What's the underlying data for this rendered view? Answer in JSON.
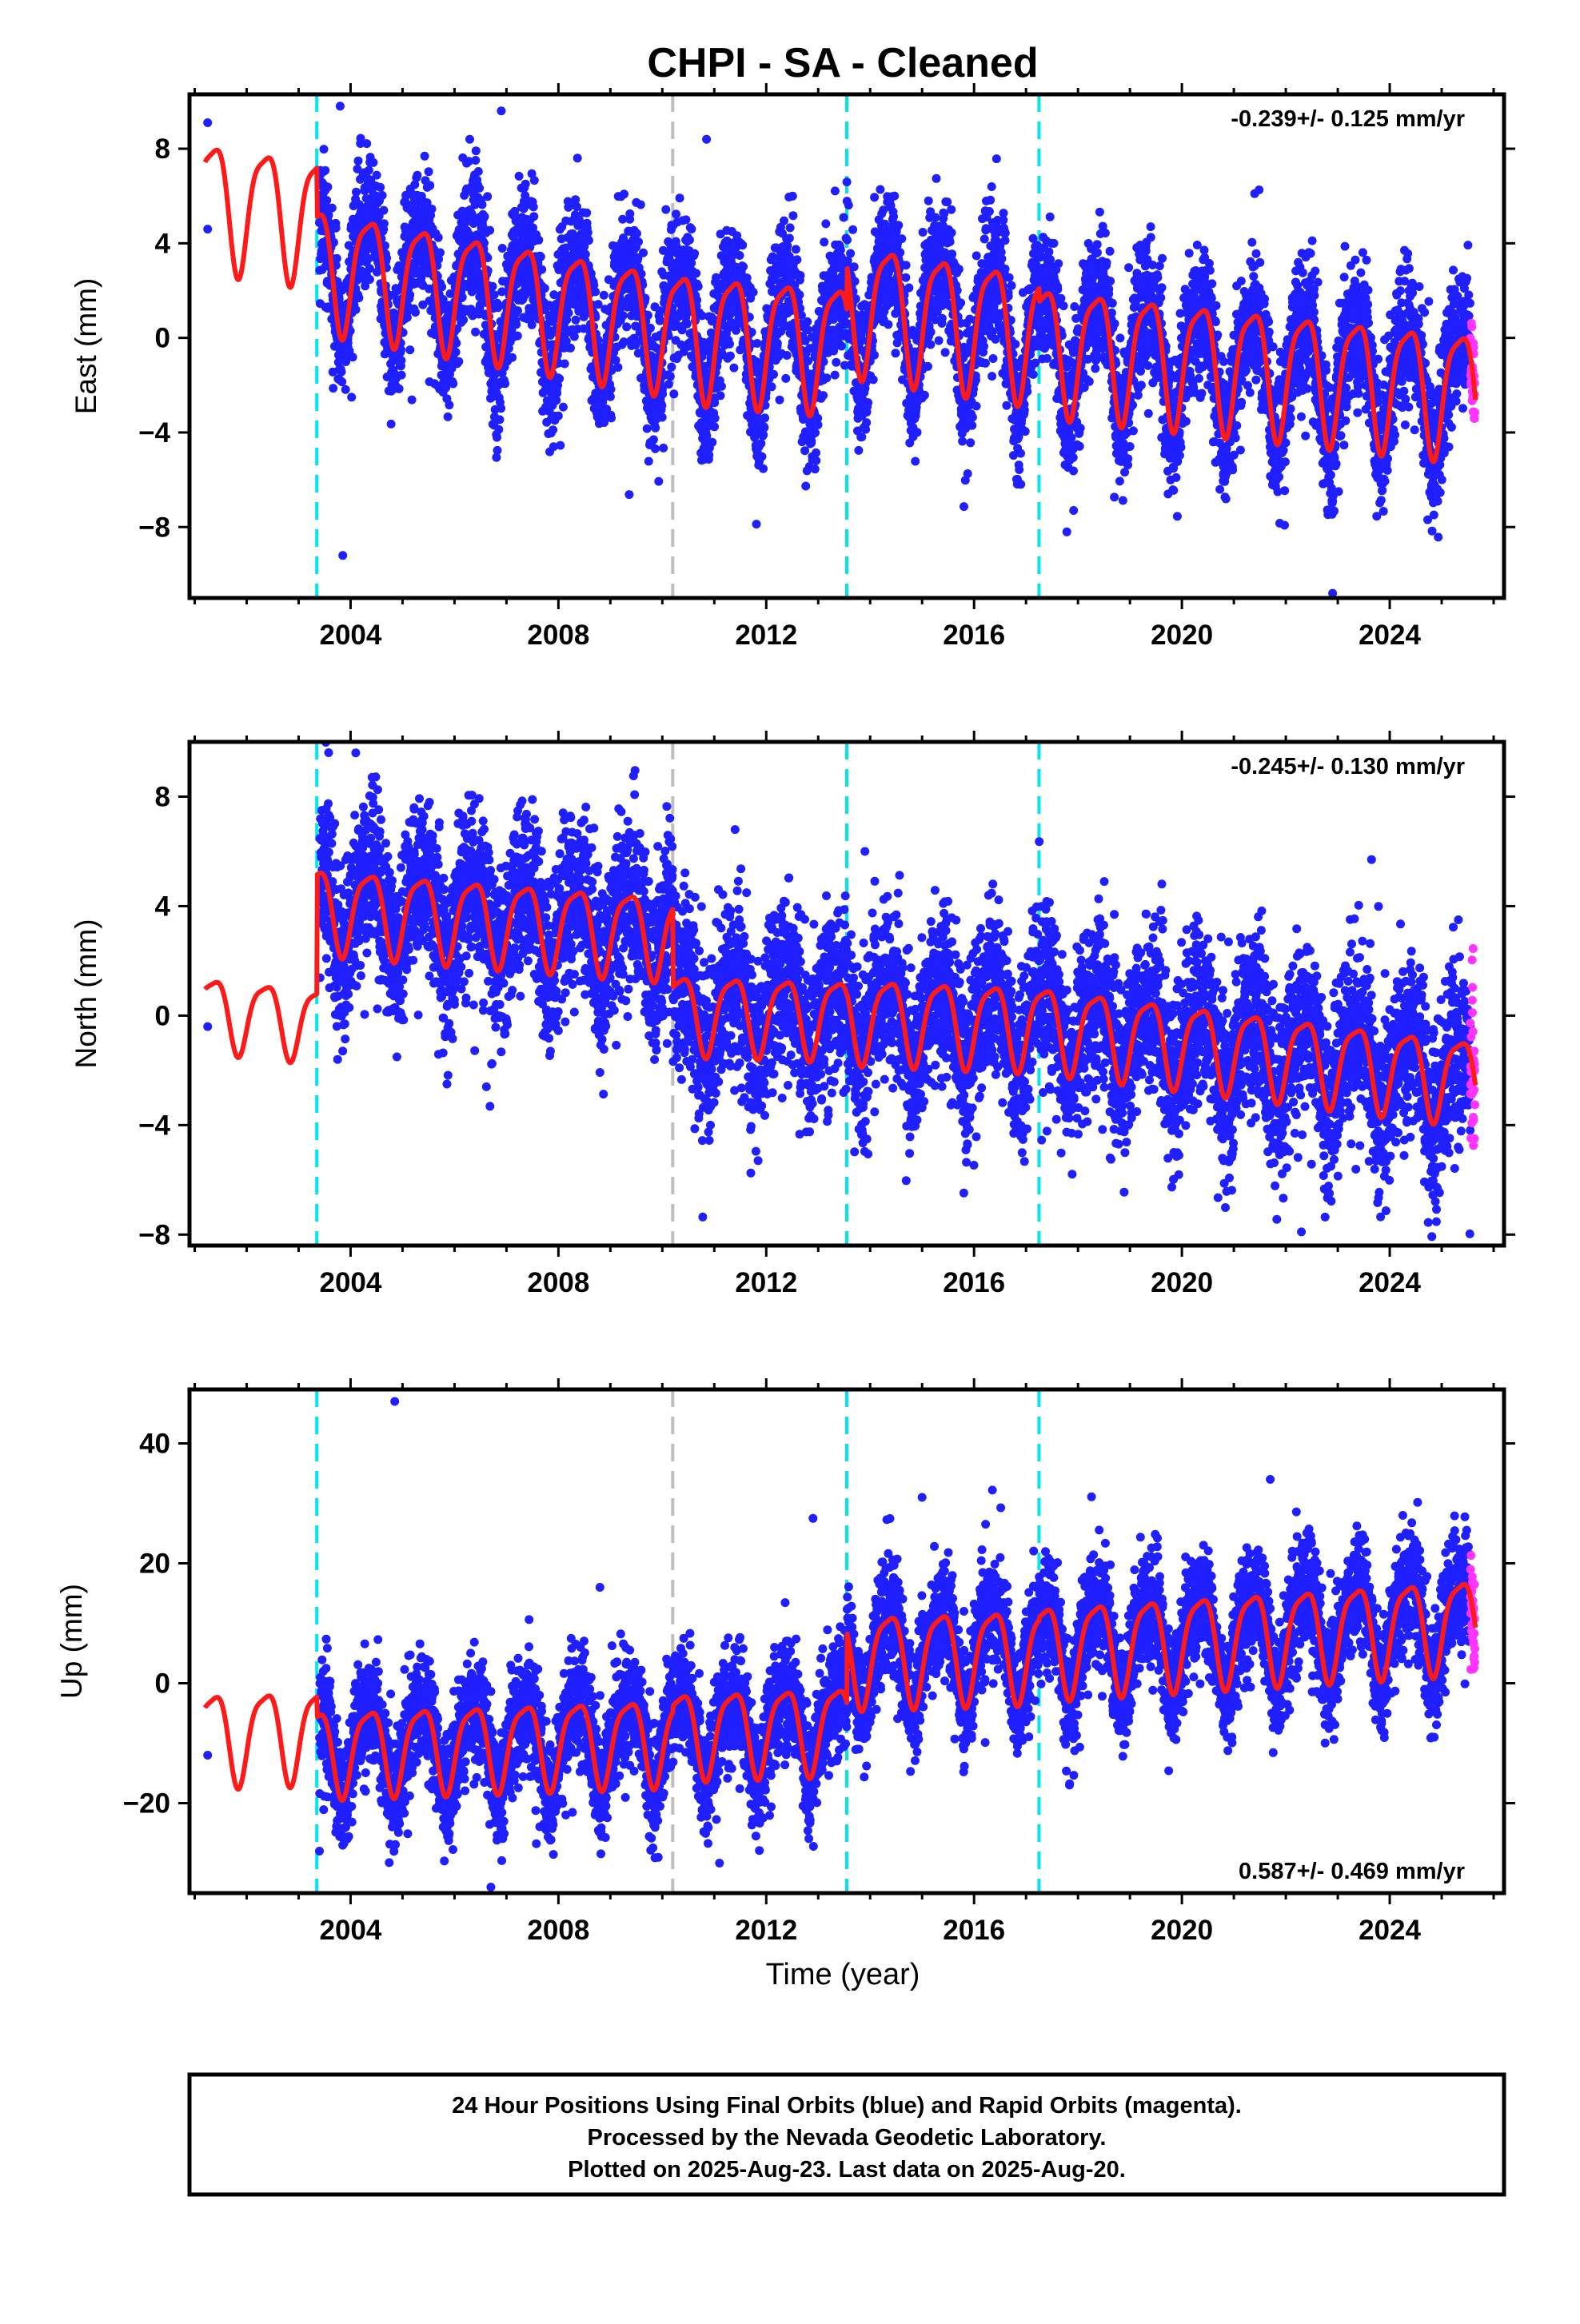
{
  "chart_data": {
    "type": "scatter",
    "title": "CHPI  - SA - Cleaned",
    "xlabel": "Time (year)",
    "xlim": [
      2000.9,
      2026.2
    ],
    "x_ticks": [
      2004,
      2008,
      2012,
      2016,
      2020,
      2024
    ],
    "x_tick_labels": [
      "2004",
      "2008",
      "2012",
      "2016",
      "2020",
      "2024"
    ],
    "colors": {
      "final_orbits": "#1f1fff",
      "rapid_orbits": "#ff33ff",
      "model": "#ff1a1a",
      "offset_equipment": "#00e5ee",
      "offset_other": "#bfbfbf",
      "frame": "#000000"
    },
    "offsets": [
      {
        "year": 2003.35,
        "kind": "equipment"
      },
      {
        "year": 2010.2,
        "kind": "other"
      },
      {
        "year": 2013.55,
        "kind": "equipment"
      },
      {
        "year": 2017.25,
        "kind": "equipment"
      }
    ],
    "panels": [
      {
        "id": "east",
        "ylabel": "East (mm)",
        "ylim": [
          -11,
          10.3
        ],
        "y_ticks": [
          -8,
          -4,
          0,
          4,
          8
        ],
        "y_tick_labels": [
          "−8",
          "−4",
          "0",
          "4",
          "8"
        ],
        "rate": "-0.239+/- 0.125 mm/yr",
        "rate_position": "top-right",
        "model": {
          "type": "piecewise-linear-plus-seasonal",
          "segments": [
            {
              "from": 2001.2,
              "to": 2003.35,
              "trend": [
                5.9,
                5.2
              ],
              "amplitude": 2.6
            },
            {
              "from": 2003.35,
              "to": 2010.2,
              "trend": [
                3.2,
                0.5
              ],
              "amplitude": 2.5
            },
            {
              "from": 2010.2,
              "to": 2013.55,
              "trend": [
                0.4,
                -0.2
              ],
              "amplitude": 2.6
            },
            {
              "from": 2013.55,
              "to": 2017.25,
              "trend": [
                1.6,
                0.3
              ],
              "amplitude": 2.7
            },
            {
              "from": 2017.25,
              "to": 2025.65,
              "trend": [
                -0.2,
                -2.2
              ],
              "amplitude": 2.6
            }
          ]
        },
        "final_orbits": {
          "from": 2003.4,
          "to": 2025.55,
          "noise_sd": 1.4
        },
        "rapid_orbits": {
          "from": 2025.55,
          "to": 2025.64,
          "noise_sd": 1.3
        },
        "isolated_points": [
          [
            2001.25,
            9.1
          ],
          [
            2001.25,
            4.6
          ],
          [
            2003.85,
            -9.2
          ],
          [
            2003.8,
            9.8
          ],
          [
            2010.85,
            8.4
          ],
          [
            2006.9,
            9.6
          ],
          [
            2021.4,
            6.1
          ],
          [
            2022.9,
            -10.8
          ]
        ]
      },
      {
        "id": "north",
        "ylabel": "North (mm)",
        "ylim": [
          -8.4,
          10.0
        ],
        "y_ticks": [
          -8,
          -4,
          0,
          4,
          8
        ],
        "y_tick_labels": [
          "−8",
          "−4",
          "0",
          "4",
          "8"
        ],
        "rate": "-0.245+/- 0.130 mm/yr",
        "rate_position": "top-right",
        "model": {
          "type": "piecewise-linear-plus-seasonal",
          "segments": [
            {
              "from": 2001.2,
              "to": 2003.35,
              "trend": [
                0.2,
                -0.2
              ],
              "amplitude": 1.3
            },
            {
              "from": 2003.35,
              "to": 2010.2,
              "trend": [
                4.0,
                3.0
              ],
              "amplitude": 1.5
            },
            {
              "from": 2010.2,
              "to": 2013.55,
              "trend": [
                0.2,
                0.0
              ],
              "amplitude": 1.4
            },
            {
              "from": 2013.55,
              "to": 2017.25,
              "trend": [
                0.0,
                -0.3
              ],
              "amplitude": 1.5
            },
            {
              "from": 2017.25,
              "to": 2025.65,
              "trend": [
                -0.3,
                -2.3
              ],
              "amplitude": 1.5
            }
          ]
        },
        "final_orbits": {
          "from": 2003.4,
          "to": 2025.55,
          "noise_sd": 1.5
        },
        "rapid_orbits": {
          "from": 2025.55,
          "to": 2025.64,
          "noise_sd": 1.8
        },
        "isolated_points": [
          [
            2001.25,
            -0.4
          ],
          [
            2003.75,
            -1.6
          ],
          [
            2004.1,
            9.6
          ],
          [
            2023.65,
            5.7
          ],
          [
            2022.3,
            -7.9
          ],
          [
            2013.9,
            6.0
          ],
          [
            2011.4,
            6.8
          ]
        ]
      },
      {
        "id": "up",
        "ylabel": "Up (mm)",
        "ylim": [
          -35,
          49
        ],
        "y_ticks": [
          -20,
          0,
          20,
          40
        ],
        "y_tick_labels": [
          "−20",
          "0",
          "20",
          "40"
        ],
        "rate": "0.587+/- 0.469 mm/yr",
        "rate_position": "bottom-right",
        "model": {
          "type": "piecewise-linear-plus-seasonal",
          "segments": [
            {
              "from": 2001.2,
              "to": 2003.35,
              "trend": [
                -8.5,
                -8.0
              ],
              "amplitude": 7.5
            },
            {
              "from": 2003.35,
              "to": 2010.2,
              "trend": [
                -11.0,
                -9.0
              ],
              "amplitude": 7.0
            },
            {
              "from": 2010.2,
              "to": 2013.55,
              "trend": [
                -8.0,
                -7.0
              ],
              "amplitude": 7.0
            },
            {
              "from": 2013.55,
              "to": 2017.25,
              "trend": [
                4.5,
                5.5
              ],
              "amplitude": 7.5
            },
            {
              "from": 2017.25,
              "to": 2025.65,
              "trend": [
                6.0,
                10.5
              ],
              "amplitude": 7.5
            }
          ]
        },
        "final_orbits": {
          "from": 2003.4,
          "to": 2025.55,
          "noise_sd": 4.5
        },
        "rapid_orbits": {
          "from": 2025.55,
          "to": 2025.64,
          "noise_sd": 5.0
        },
        "isolated_points": [
          [
            2001.25,
            -12.0
          ],
          [
            2003.4,
            -28.0
          ],
          [
            2004.85,
            47.0
          ],
          [
            2006.7,
            -34.0
          ],
          [
            2008.8,
            16.0
          ],
          [
            2012.9,
            27.5
          ],
          [
            2021.7,
            34.0
          ],
          [
            2015.0,
            31.0
          ],
          [
            2011.1,
            -30.0
          ]
        ]
      }
    ]
  },
  "footer": {
    "line1": "24 Hour Positions Using Final Orbits (blue) and Rapid Orbits (magenta).",
    "line2": "Processed by the Nevada Geodetic Laboratory.",
    "line3": "Plotted on 2025-Aug-23. Last data on 2025-Aug-20."
  }
}
